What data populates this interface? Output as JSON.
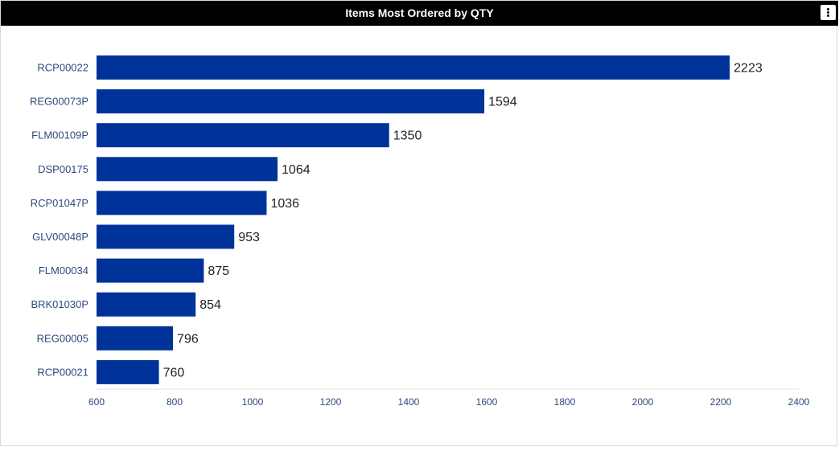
{
  "header": {
    "title": "Items Most Ordered by QTY",
    "menu_icon": "kebab-menu-icon"
  },
  "colors": {
    "bar": "#003399",
    "axis_label": "#2e4a7d",
    "value_label": "#222222",
    "header_bg": "#000000",
    "header_text": "#ffffff"
  },
  "chart_data": {
    "type": "bar",
    "orientation": "horizontal",
    "title": "Items Most Ordered by QTY",
    "categories": [
      "RCP00022",
      "REG00073P",
      "FLM00109P",
      "DSP00175",
      "RCP01047P",
      "GLV00048P",
      "FLM00034",
      "BRK01030P",
      "REG00005",
      "RCP00021"
    ],
    "values": [
      2223,
      1594,
      1350,
      1064,
      1036,
      953,
      875,
      854,
      796,
      760
    ],
    "xlim": [
      600,
      2400
    ],
    "xticks": [
      600,
      800,
      1000,
      1200,
      1400,
      1600,
      1800,
      2000,
      2200,
      2400
    ],
    "xlabel": "",
    "ylabel": "",
    "data_labels": true,
    "grid": false,
    "legend": "none"
  }
}
